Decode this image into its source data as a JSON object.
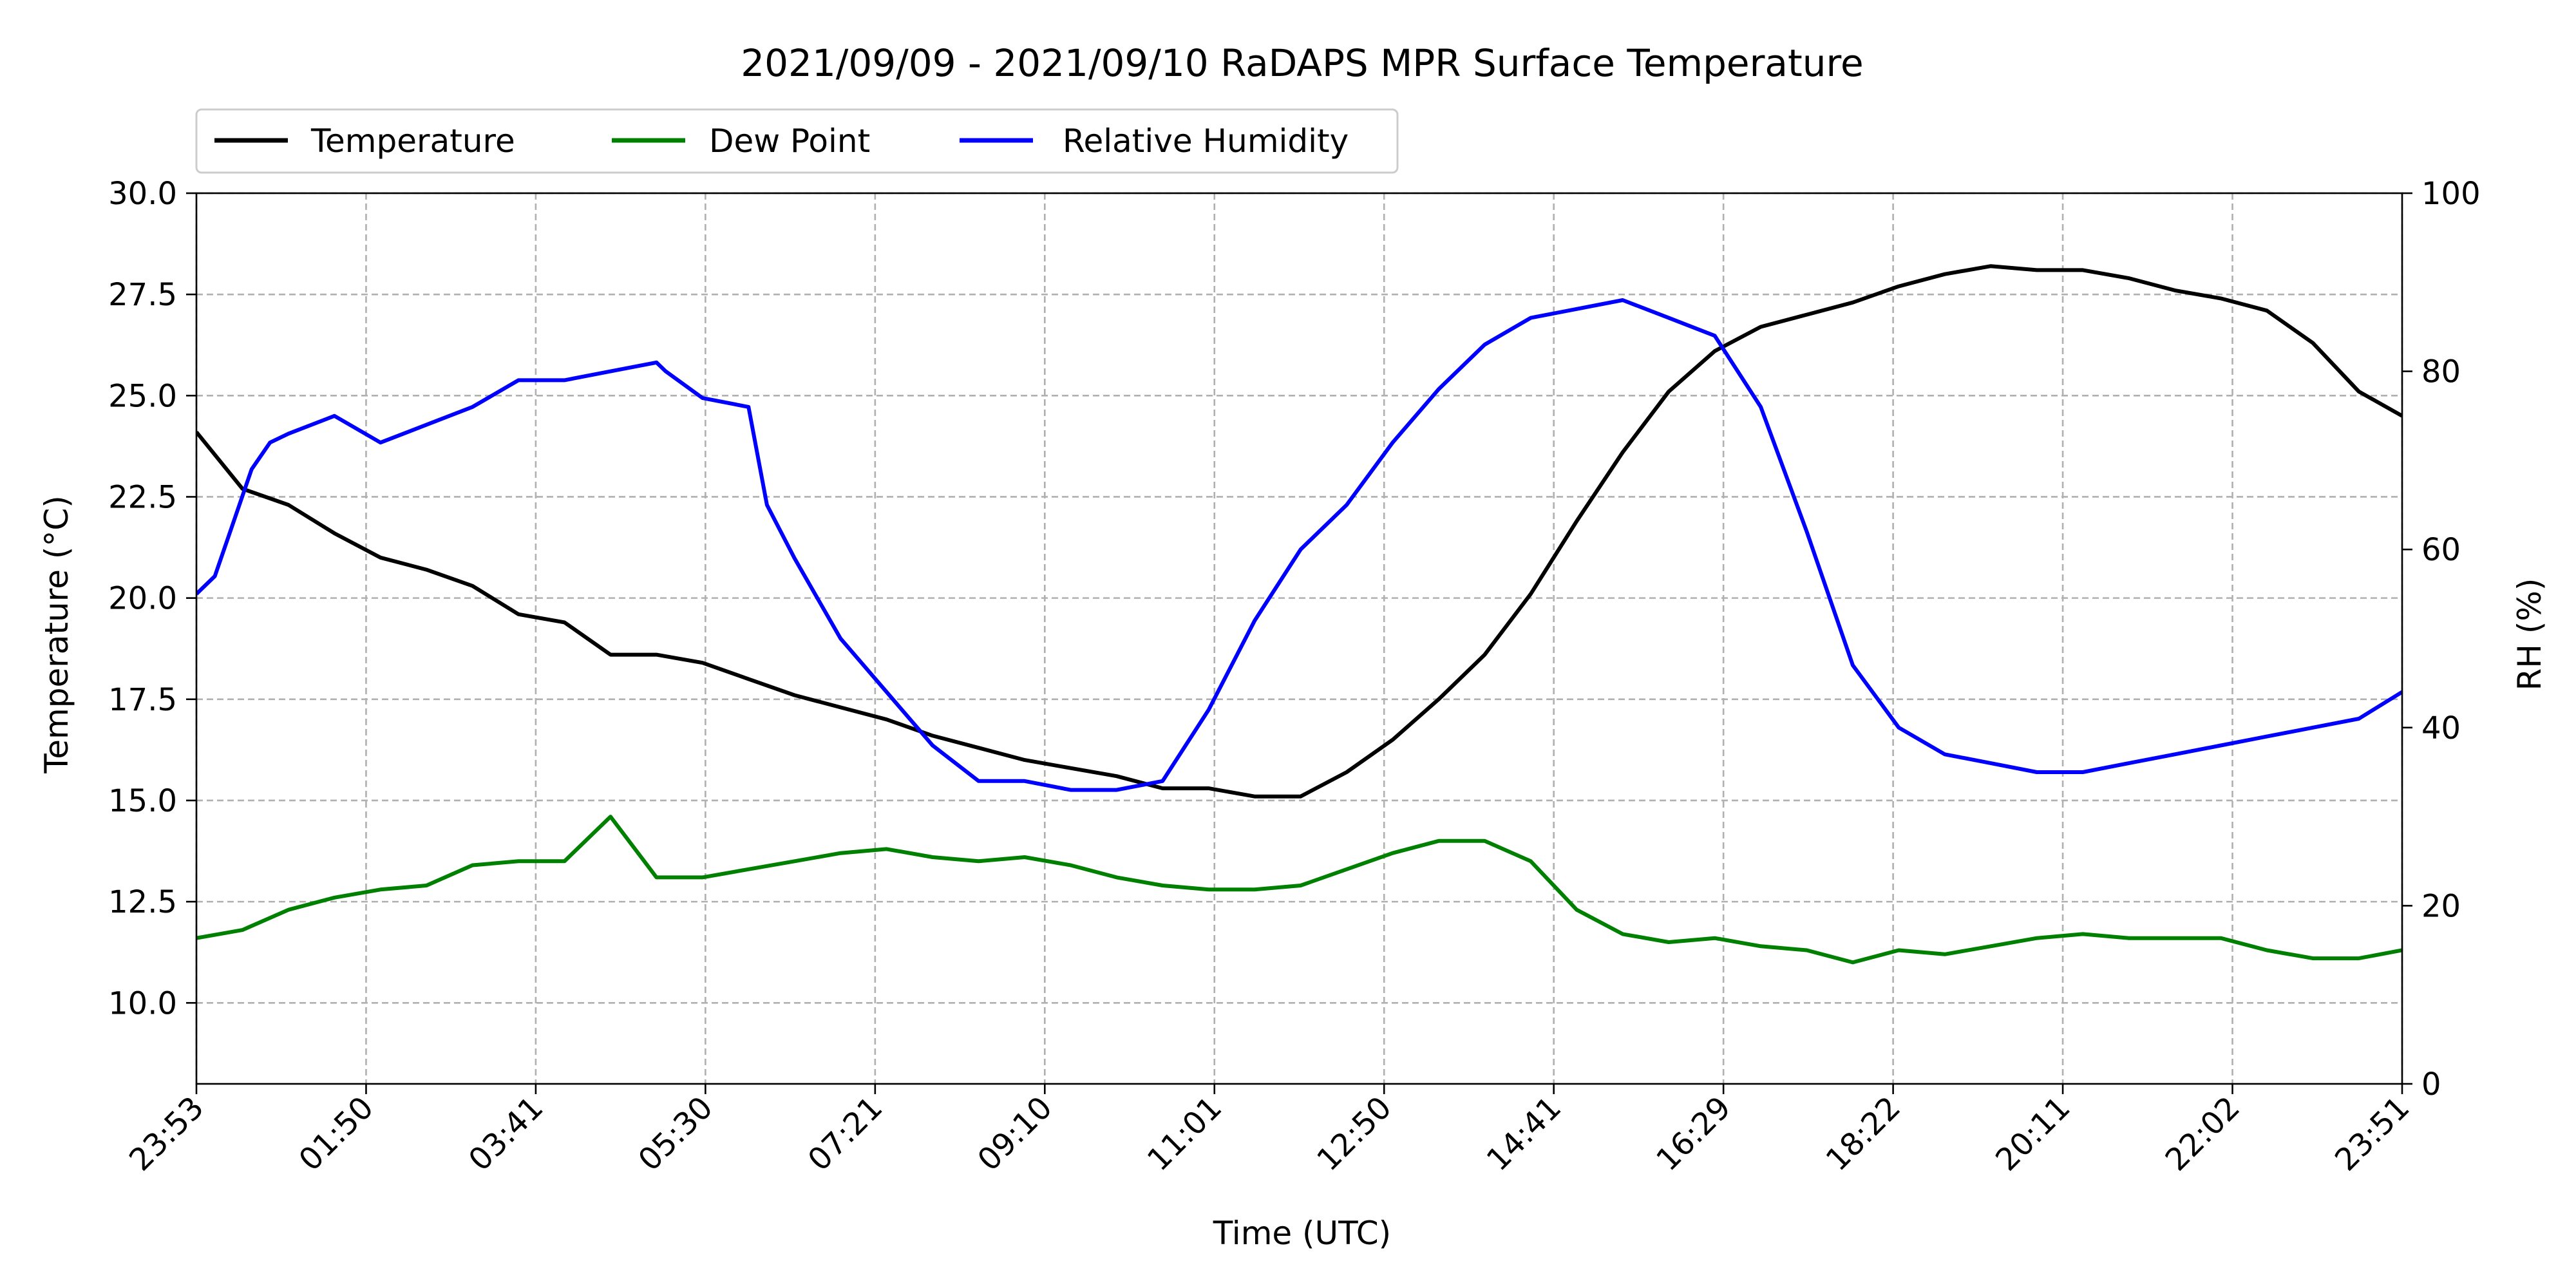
{
  "chart_data": {
    "type": "line",
    "title": "2021/09/09 - 2021/09/10 RaDAPS MPR Surface Temperature",
    "xlabel": "Time (UTC)",
    "ylabel_left": "Temperature ($^\\circ$C)",
    "ylabel_left_display": "Temperature (°C)",
    "ylabel_right": "RH (%)",
    "x_tick_labels": [
      "23:53",
      "01:50",
      "03:41",
      "05:30",
      "07:21",
      "09:10",
      "11:01",
      "12:50",
      "14:41",
      "16:29",
      "18:22",
      "20:11",
      "22:02",
      "23:51"
    ],
    "ylim_left": [
      8.0,
      30.0
    ],
    "ylim_right": [
      0,
      100
    ],
    "y_left_ticks": [
      "10.0",
      "12.5",
      "15.0",
      "17.5",
      "20.0",
      "22.5",
      "25.0",
      "27.5",
      "30.0"
    ],
    "y_right_ticks": [
      "0",
      "20",
      "40",
      "60",
      "80",
      "100"
    ],
    "grid": true,
    "legend_position": "top-left above plot",
    "x_unit": "hours after 23:53 UTC",
    "series": [
      {
        "name": "Temperature",
        "axis": "left",
        "color": "#000000",
        "x": [
          0,
          0.5,
          1,
          1.5,
          2,
          2.5,
          3,
          3.5,
          4,
          4.5,
          5,
          5.5,
          6,
          6.5,
          7,
          7.5,
          8,
          8.5,
          9,
          9.5,
          10,
          10.5,
          11,
          11.5,
          12,
          12.5,
          13,
          13.5,
          14,
          14.5,
          15,
          15.5,
          16,
          16.5,
          17,
          17.5,
          18,
          18.5,
          19,
          19.5,
          20,
          20.5,
          21,
          21.5,
          22,
          22.5,
          23,
          23.5,
          23.97
        ],
        "values": [
          24.1,
          22.7,
          22.3,
          21.6,
          21.0,
          20.7,
          20.3,
          19.6,
          19.4,
          18.6,
          18.6,
          18.4,
          18.0,
          17.6,
          17.3,
          17.0,
          16.6,
          16.3,
          16.0,
          15.8,
          15.6,
          15.3,
          15.3,
          15.1,
          15.1,
          15.7,
          16.5,
          17.5,
          18.6,
          20.1,
          21.9,
          23.6,
          25.1,
          26.1,
          26.7,
          27.0,
          27.3,
          27.7,
          28.0,
          28.2,
          28.1,
          28.1,
          27.9,
          27.6,
          27.4,
          27.1,
          26.3,
          25.1,
          24.5
        ]
      },
      {
        "name": "Dew Point",
        "axis": "left",
        "color": "#008000",
        "x": [
          0,
          0.5,
          1,
          1.5,
          2,
          2.5,
          3,
          3.5,
          4,
          4.5,
          5,
          5.5,
          6,
          6.5,
          7,
          7.5,
          8,
          8.5,
          9,
          9.5,
          10,
          10.5,
          11,
          11.5,
          12,
          12.5,
          13,
          13.5,
          14,
          14.5,
          15,
          15.5,
          16,
          16.5,
          17,
          17.5,
          18,
          18.5,
          19,
          19.5,
          20,
          20.5,
          21,
          21.5,
          22,
          22.5,
          23,
          23.5,
          23.97
        ],
        "values": [
          11.6,
          11.8,
          12.3,
          12.6,
          12.8,
          12.9,
          13.4,
          13.5,
          13.5,
          14.6,
          13.1,
          13.1,
          13.3,
          13.5,
          13.7,
          13.8,
          13.6,
          13.5,
          13.6,
          13.4,
          13.1,
          12.9,
          12.8,
          12.8,
          12.9,
          13.3,
          13.7,
          14.0,
          14.0,
          13.5,
          12.3,
          11.7,
          11.5,
          11.6,
          11.4,
          11.3,
          11.0,
          11.3,
          11.2,
          11.4,
          11.6,
          11.7,
          11.6,
          11.6,
          11.6,
          11.3,
          11.1,
          11.1,
          11.3
        ]
      },
      {
        "name": "Relative Humidity",
        "axis": "right",
        "color": "#0000ff",
        "x": [
          0,
          0.2,
          0.4,
          0.6,
          0.8,
          1,
          1.5,
          2,
          2.5,
          3,
          3.5,
          4,
          4.5,
          5,
          5.1,
          5.5,
          6,
          6.2,
          6.5,
          7,
          7.5,
          8,
          8.5,
          9,
          9.5,
          10,
          10.5,
          11,
          11.5,
          12,
          12.5,
          13,
          13.5,
          14,
          14.5,
          15,
          15.5,
          16,
          16.5,
          17,
          17.5,
          18,
          18.5,
          19,
          19.5,
          20,
          20.5,
          21,
          21.5,
          22,
          22.5,
          23,
          23.5,
          23.97
        ],
        "values": [
          55,
          57,
          63,
          69,
          72,
          73,
          75,
          72,
          74,
          76,
          79,
          79,
          80,
          81,
          80,
          77,
          76,
          65,
          59,
          50,
          44,
          38,
          34,
          34,
          33,
          33,
          34,
          42,
          52,
          60,
          65,
          72,
          78,
          83,
          86,
          87,
          88,
          86,
          84,
          76,
          62,
          47,
          40,
          37,
          36,
          35,
          35,
          36,
          37,
          38,
          39,
          40,
          41,
          44
        ]
      }
    ],
    "legend": {
      "items": [
        {
          "label": "Temperature",
          "color": "#000000"
        },
        {
          "label": "Dew Point",
          "color": "#008000"
        },
        {
          "label": "Relative Humidity",
          "color": "#0000ff"
        }
      ]
    }
  }
}
